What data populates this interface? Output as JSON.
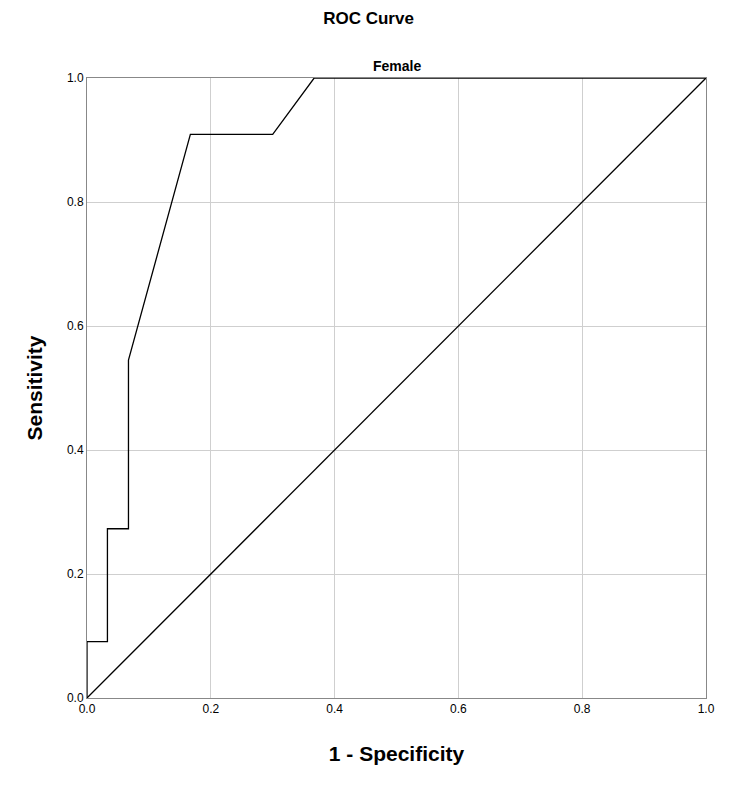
{
  "chart_data": {
    "type": "line",
    "title": "ROC Curve",
    "subtitle": "Female",
    "x_label": "1 - Specificity",
    "y_label": "Sensitivity",
    "xlim": [
      0,
      1
    ],
    "ylim": [
      0,
      1
    ],
    "xticks": [
      {
        "value": 0,
        "label": "0.0"
      },
      0.2,
      0.4,
      0.6,
      0.8,
      {
        "value": 1,
        "label": "1.0"
      }
    ],
    "yticks": [
      {
        "value": 0,
        "label": "0.0"
      },
      0.2,
      0.4,
      0.6,
      0.8,
      {
        "value": 1,
        "label": "1.0"
      }
    ],
    "grid": true,
    "series": [
      {
        "color": "#000000",
        "x": [
          0,
          0,
          0.033,
          0.033,
          0.067,
          0.067,
          0.167,
          0.3,
          0.367,
          1.0
        ],
        "values": [
          0,
          0.091,
          0.091,
          0.273,
          0.273,
          0.545,
          0.909,
          0.909,
          1.0,
          1.0
        ]
      },
      {
        "color": "#000000",
        "x": [
          0,
          1
        ],
        "values": [
          0,
          1
        ]
      }
    ]
  }
}
